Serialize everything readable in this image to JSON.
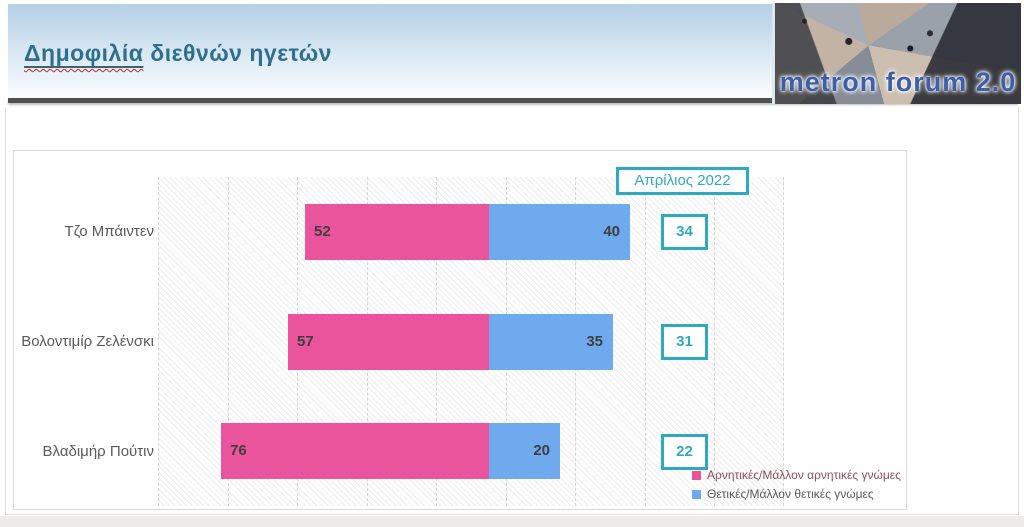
{
  "header": {
    "title_word": "Δημοφιλία",
    "title_rest": " διεθνών ηγετών",
    "logo_text": "metron forum 2.0"
  },
  "colors": {
    "negative": "#e9549c",
    "positive": "#70aaee",
    "accent_teal": "#2ea9c1",
    "title_text": "#2e6f8e",
    "logo_text": "#3d5fa9"
  },
  "chart_data": {
    "type": "bar",
    "orientation": "horizontal-diverging-stacked",
    "title": "Δημοφιλία διεθνών ηγετών",
    "period_label": "Απρίλιος 2022",
    "categories": [
      "Τζο Μπάιντεν",
      "Βολοντιμίρ Ζελένσκι",
      "Βλαδιμήρ Πούτιν"
    ],
    "series": [
      {
        "name": "Αρνητικές/Μάλλον αρνητικές γνώμες",
        "color": "#e9549c",
        "values": [
          52,
          57,
          76
        ]
      },
      {
        "name": "Θετικές/Μάλλον θετικές γνώμες",
        "color": "#70aaee",
        "values": [
          40,
          35,
          20
        ]
      }
    ],
    "rows": [
      {
        "label": "Τζο Μπάιντεν",
        "negative": 52,
        "positive": 40,
        "boxed": 34
      },
      {
        "label": "Βολοντιμίρ Ζελένσκι",
        "negative": 57,
        "positive": 35,
        "boxed": 31
      },
      {
        "label": "Βλαδιμήρ Πούτιν",
        "negative": 76,
        "positive": 20,
        "boxed": 22
      }
    ],
    "axis": {
      "unit": "percent",
      "gridline_step": 20,
      "grid": true
    },
    "legend_position": "bottom-right"
  }
}
